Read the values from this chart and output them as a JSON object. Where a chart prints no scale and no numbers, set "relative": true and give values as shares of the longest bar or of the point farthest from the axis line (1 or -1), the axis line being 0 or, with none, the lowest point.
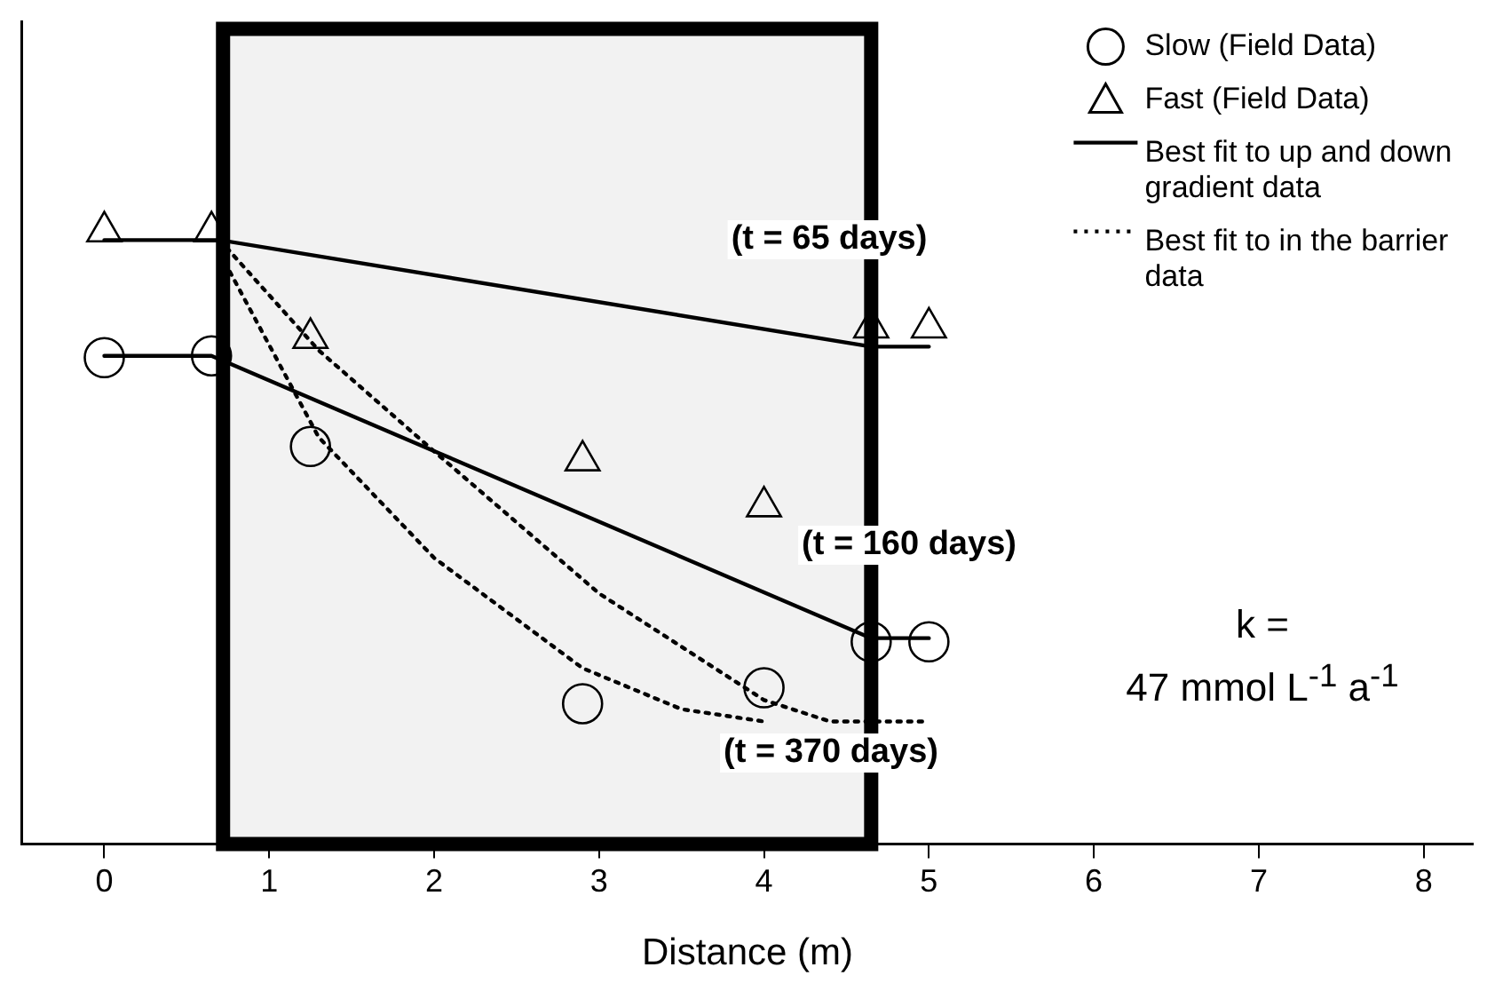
{
  "chart_data": {
    "type": "scatter",
    "xlabel": "Distance (m)",
    "relative": true,
    "xlim": [
      -0.5,
      8.3
    ],
    "xticks": [
      0,
      1,
      2,
      3,
      4,
      5,
      6,
      7,
      8
    ],
    "grid": false,
    "legend": "top right",
    "series": [
      {
        "name": "Slow (Field Data)",
        "type": "scatter",
        "marker": "circle",
        "color": "#000000",
        "x": [
          0,
          0.65,
          1.25,
          2.9,
          4.0,
          4.65,
          5.0
        ],
        "values": [
          0.794,
          0.797,
          0.649,
          0.229,
          0.255,
          0.33,
          0.33
        ]
      },
      {
        "name": "Fast (Field Data)",
        "type": "scatter",
        "marker": "triangle",
        "color": "#000000",
        "x": [
          0,
          0.65,
          1.25,
          2.9,
          4.0,
          4.65,
          5.0
        ],
        "values": [
          1.0,
          1.0,
          0.826,
          0.626,
          0.551,
          0.843,
          0.843
        ]
      },
      {
        "name": "Best fit to up and down gradient data",
        "type": "line",
        "line_style": "solid",
        "marker": "none",
        "color": "#000000",
        "x": [
          0,
          0.7,
          4.65,
          5
        ],
        "values": [
          0.986,
          0.986,
          0.812,
          0.812
        ]
      },
      {
        "type": "line",
        "line_style": "solid",
        "marker": "none",
        "color": "#000000",
        "x": [
          0,
          0.65,
          4.65,
          5
        ],
        "values": [
          0.797,
          0.797,
          0.336,
          0.336
        ]
      },
      {
        "name": "Best fit to in the barrier data",
        "type": "line",
        "line_style": "dotted",
        "marker": "none",
        "color": "#000000",
        "x": [
          0.7,
          1.3,
          2,
          3,
          4,
          4.4,
          5
        ],
        "values": [
          0.986,
          0.806,
          0.641,
          0.409,
          0.235,
          0.2,
          0.2
        ]
      },
      {
        "type": "line",
        "line_style": "dotted",
        "marker": "none",
        "color": "#000000",
        "x": [
          0.7,
          1.3,
          2,
          2.9,
          3.5,
          4
        ],
        "values": [
          0.965,
          0.664,
          0.467,
          0.287,
          0.22,
          0.2
        ]
      }
    ],
    "bands": [
      {
        "axis": "x",
        "from": 0.72,
        "to": 4.65,
        "color": "#000000"
      }
    ],
    "annotations": [
      "(t = 65 days)",
      "(t = 160 days)",
      "(t = 370 days)",
      "k =",
      "47 mmol L$^{-1}$ a$^{-1}$"
    ]
  }
}
